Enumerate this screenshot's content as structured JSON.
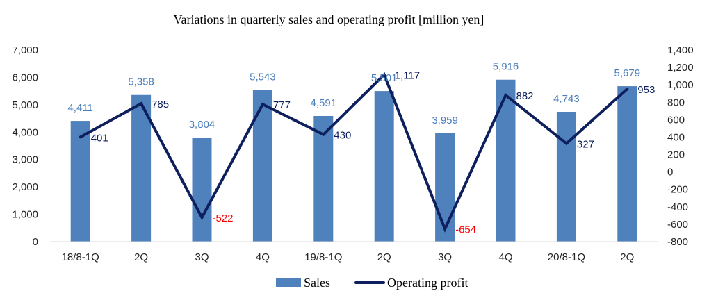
{
  "chart_data": {
    "type": "bar",
    "title": "Variations in quarterly sales and operating profit [million yen]",
    "categories": [
      "18/8-1Q",
      "2Q",
      "3Q",
      "4Q",
      "19/8-1Q",
      "2Q",
      "3Q",
      "4Q",
      "20/8-1Q",
      "2Q"
    ],
    "series": [
      {
        "name": "Sales",
        "type": "bar",
        "axis": "left",
        "color": "#4f81bd",
        "values": [
          4411,
          5358,
          3804,
          5543,
          4591,
          5501,
          3959,
          5916,
          4743,
          5679
        ],
        "labels": [
          "4,411",
          "5,358",
          "3,804",
          "5,543",
          "4,591",
          "5,501",
          "3,959",
          "5,916",
          "4,743",
          "5,679"
        ]
      },
      {
        "name": "Operating profit",
        "type": "line",
        "axis": "right",
        "color": "#0d1f5c",
        "values": [
          401,
          785,
          -522,
          777,
          430,
          1117,
          -654,
          882,
          327,
          953
        ],
        "labels": [
          "401",
          "785",
          "-522",
          "777",
          "430",
          "1,117",
          "-654",
          "882",
          "327",
          "953"
        ]
      }
    ],
    "y_left": {
      "ylim": [
        0,
        7000
      ],
      "ticks": [
        0,
        1000,
        2000,
        3000,
        4000,
        5000,
        6000,
        7000
      ],
      "tick_labels": [
        "0",
        "1,000",
        "2,000",
        "3,000",
        "4,000",
        "5,000",
        "6,000",
        "7,000"
      ]
    },
    "y_right": {
      "ylim": [
        -800,
        1400
      ],
      "ticks": [
        -800,
        -600,
        -400,
        -200,
        0,
        200,
        400,
        600,
        800,
        1000,
        1200,
        1400
      ],
      "tick_labels": [
        "-800",
        "-600",
        "-400",
        "-200",
        "0",
        "200",
        "400",
        "600",
        "800",
        "1,000",
        "1,200",
        "1,400"
      ],
      "negative_color": "#ff0000"
    },
    "grid": false,
    "legend": {
      "position": "bottom",
      "entries": [
        "Sales",
        "Operating profit"
      ]
    }
  }
}
